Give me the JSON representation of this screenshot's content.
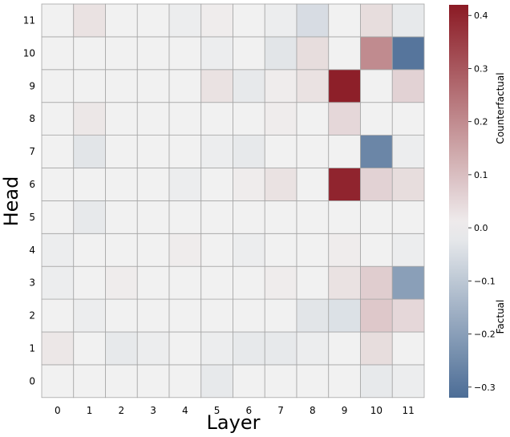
{
  "chart_data": {
    "type": "heatmap",
    "xlabel": "Layer",
    "ylabel": "Head",
    "x_categories": [
      "0",
      "1",
      "2",
      "3",
      "4",
      "5",
      "6",
      "7",
      "8",
      "9",
      "10",
      "11"
    ],
    "y_categories": [
      "0",
      "1",
      "2",
      "3",
      "4",
      "5",
      "6",
      "7",
      "8",
      "9",
      "10",
      "11"
    ],
    "values_by_head": [
      [
        0.0,
        0.0,
        0.0,
        0.0,
        0.0,
        -0.02,
        0.0,
        0.0,
        0.0,
        0.0,
        -0.02,
        -0.01
      ],
      [
        0.02,
        0.0,
        -0.02,
        -0.01,
        0.0,
        -0.01,
        -0.02,
        -0.02,
        -0.01,
        0.0,
        0.04,
        0.0
      ],
      [
        0.0,
        -0.01,
        0.0,
        0.0,
        0.0,
        0.0,
        0.0,
        0.0,
        -0.03,
        -0.04,
        0.08,
        0.05
      ],
      [
        -0.01,
        0.0,
        0.01,
        0.0,
        0.0,
        0.0,
        0.0,
        0.01,
        0.0,
        0.03,
        0.07,
        -0.2
      ],
      [
        -0.01,
        0.0,
        0.0,
        0.0,
        0.01,
        0.0,
        -0.01,
        0.0,
        0.0,
        0.01,
        0.0,
        -0.01
      ],
      [
        0.0,
        -0.02,
        0.0,
        0.0,
        0.0,
        0.0,
        0.0,
        0.0,
        0.0,
        0.0,
        0.0,
        0.0
      ],
      [
        0.0,
        0.0,
        0.0,
        0.0,
        -0.01,
        0.0,
        0.01,
        0.03,
        0.0,
        0.4,
        0.06,
        0.04
      ],
      [
        0.0,
        -0.03,
        0.0,
        0.0,
        0.0,
        -0.01,
        -0.02,
        0.0,
        0.0,
        0.0,
        -0.26,
        -0.01
      ],
      [
        0.0,
        0.02,
        0.0,
        0.0,
        0.0,
        0.0,
        0.0,
        0.01,
        0.0,
        0.05,
        0.0,
        0.0
      ],
      [
        0.0,
        0.0,
        0.0,
        0.0,
        0.0,
        0.03,
        -0.02,
        0.01,
        0.03,
        0.41,
        0.0,
        0.06
      ],
      [
        0.0,
        0.0,
        0.0,
        0.0,
        0.0,
        -0.01,
        0.0,
        -0.03,
        0.04,
        0.0,
        0.2,
        -0.3
      ],
      [
        0.0,
        0.03,
        0.0,
        0.0,
        -0.01,
        0.01,
        0.0,
        -0.01,
        -0.05,
        0.0,
        0.04,
        -0.02
      ]
    ],
    "colorbar": {
      "min": -0.32,
      "max": 0.42,
      "ticks": [
        "0.4",
        "0.3",
        "0.2",
        "0.1",
        "0.0",
        "−0.1",
        "−0.2",
        "−0.3"
      ],
      "tick_values": [
        0.4,
        0.3,
        0.2,
        0.1,
        0.0,
        -0.1,
        -0.2,
        -0.3
      ],
      "label_upper": "Counterfactual",
      "label_lower": "Factual",
      "colors": {
        "negative": "#4c6d96",
        "neutral": "#f1f1f1",
        "positive": "#8b1a24"
      }
    },
    "grid": true
  }
}
